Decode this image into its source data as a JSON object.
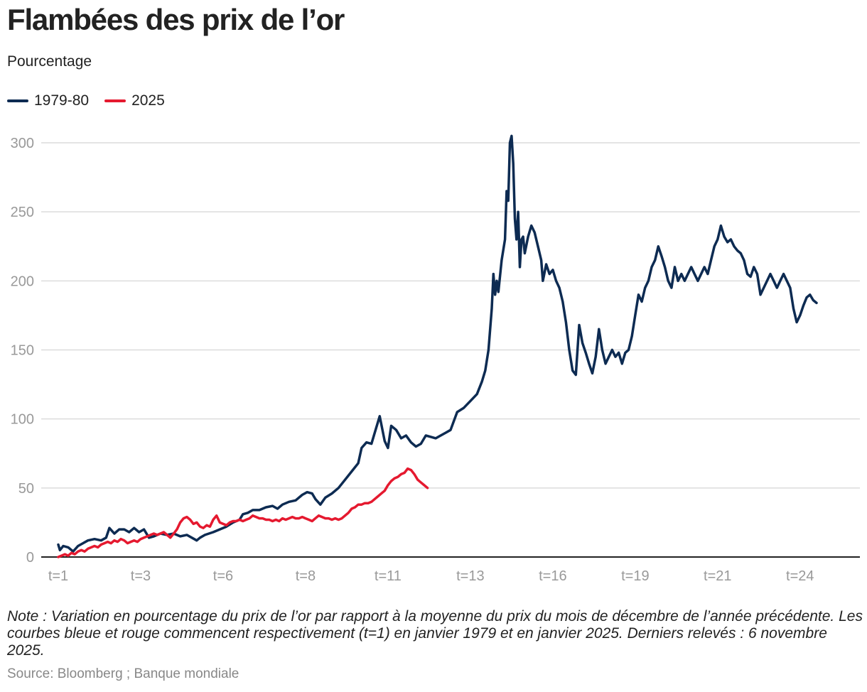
{
  "header": {
    "title": "Flambées des prix de l’or",
    "subtitle": "Pourcentage"
  },
  "colors": {
    "navy": "#0d2b52",
    "red": "#e5192f",
    "grid": "#dcdcdc",
    "tick": "#999999"
  },
  "chart_data": {
    "type": "line",
    "title": "Flambées des prix de l’or",
    "ylabel": "Pourcentage",
    "xlabel": "",
    "ylim": [
      0,
      300
    ],
    "yticks": [
      0,
      50,
      100,
      150,
      200,
      250,
      300
    ],
    "xlim": [
      1,
      25.1
    ],
    "xticks": [
      {
        "label": "t=1",
        "x": 1
      },
      {
        "label": "t=3",
        "x": 3.5
      },
      {
        "label": "t=6",
        "x": 6
      },
      {
        "label": "t=8",
        "x": 8.5
      },
      {
        "label": "t=11",
        "x": 11
      },
      {
        "label": "t=13",
        "x": 13.5
      },
      {
        "label": "t=16",
        "x": 16
      },
      {
        "label": "t=19",
        "x": 18.5
      },
      {
        "label": "t=21",
        "x": 21
      },
      {
        "label": "t=24",
        "x": 23.5
      }
    ],
    "legend_position": "top-left",
    "series": [
      {
        "name": "1979-80",
        "color": "#0d2b52",
        "points": [
          [
            1.0,
            9
          ],
          [
            1.05,
            5
          ],
          [
            1.15,
            8
          ],
          [
            1.3,
            7
          ],
          [
            1.45,
            4
          ],
          [
            1.6,
            8
          ],
          [
            1.75,
            10
          ],
          [
            1.9,
            12
          ],
          [
            2.1,
            13
          ],
          [
            2.3,
            12
          ],
          [
            2.45,
            14
          ],
          [
            2.55,
            21
          ],
          [
            2.7,
            17
          ],
          [
            2.85,
            20
          ],
          [
            3.0,
            20
          ],
          [
            3.15,
            18
          ],
          [
            3.3,
            21
          ],
          [
            3.45,
            18
          ],
          [
            3.6,
            20
          ],
          [
            3.75,
            14
          ],
          [
            3.9,
            15
          ],
          [
            4.1,
            17
          ],
          [
            4.3,
            16
          ],
          [
            4.5,
            17
          ],
          [
            4.7,
            15
          ],
          [
            4.9,
            16
          ],
          [
            5.05,
            14
          ],
          [
            5.2,
            12
          ],
          [
            5.3,
            14
          ],
          [
            5.45,
            16
          ],
          [
            5.7,
            18
          ],
          [
            5.9,
            20
          ],
          [
            6.1,
            22
          ],
          [
            6.3,
            25
          ],
          [
            6.5,
            27
          ],
          [
            6.6,
            31
          ],
          [
            6.75,
            32
          ],
          [
            6.9,
            34
          ],
          [
            7.1,
            34
          ],
          [
            7.3,
            36
          ],
          [
            7.5,
            37
          ],
          [
            7.65,
            35
          ],
          [
            7.8,
            38
          ],
          [
            8.0,
            40
          ],
          [
            8.2,
            41
          ],
          [
            8.4,
            45
          ],
          [
            8.55,
            47
          ],
          [
            8.7,
            46
          ],
          [
            8.8,
            42
          ],
          [
            8.95,
            38
          ],
          [
            9.1,
            43
          ],
          [
            9.3,
            46
          ],
          [
            9.5,
            50
          ],
          [
            9.7,
            56
          ],
          [
            9.9,
            62
          ],
          [
            10.1,
            68
          ],
          [
            10.2,
            79
          ],
          [
            10.35,
            83
          ],
          [
            10.5,
            82
          ],
          [
            10.6,
            90
          ],
          [
            10.75,
            102
          ],
          [
            10.9,
            84
          ],
          [
            11.0,
            79
          ],
          [
            11.1,
            95
          ],
          [
            11.25,
            92
          ],
          [
            11.4,
            86
          ],
          [
            11.55,
            88
          ],
          [
            11.7,
            83
          ],
          [
            11.85,
            80
          ],
          [
            12.0,
            82
          ],
          [
            12.15,
            88
          ],
          [
            12.3,
            87
          ],
          [
            12.45,
            86
          ],
          [
            12.6,
            88
          ],
          [
            12.75,
            90
          ],
          [
            12.9,
            92
          ],
          [
            13.1,
            105
          ],
          [
            13.3,
            108
          ],
          [
            13.5,
            113
          ],
          [
            13.7,
            118
          ],
          [
            13.85,
            127
          ],
          [
            13.95,
            135
          ],
          [
            14.05,
            150
          ],
          [
            14.15,
            180
          ],
          [
            14.2,
            205
          ],
          [
            14.25,
            190
          ],
          [
            14.3,
            200
          ],
          [
            14.35,
            192
          ],
          [
            14.45,
            215
          ],
          [
            14.55,
            230
          ],
          [
            14.6,
            265
          ],
          [
            14.65,
            258
          ],
          [
            14.7,
            300
          ],
          [
            14.75,
            305
          ],
          [
            14.8,
            285
          ],
          [
            14.85,
            245
          ],
          [
            14.9,
            230
          ],
          [
            14.95,
            250
          ],
          [
            15.0,
            210
          ],
          [
            15.05,
            230
          ],
          [
            15.1,
            232
          ],
          [
            15.15,
            220
          ],
          [
            15.25,
            232
          ],
          [
            15.35,
            240
          ],
          [
            15.45,
            235
          ],
          [
            15.55,
            225
          ],
          [
            15.65,
            215
          ],
          [
            15.7,
            200
          ],
          [
            15.8,
            212
          ],
          [
            15.9,
            205
          ],
          [
            16.0,
            208
          ],
          [
            16.1,
            200
          ],
          [
            16.2,
            195
          ],
          [
            16.3,
            185
          ],
          [
            16.4,
            170
          ],
          [
            16.5,
            150
          ],
          [
            16.6,
            135
          ],
          [
            16.7,
            132
          ],
          [
            16.8,
            168
          ],
          [
            16.9,
            155
          ],
          [
            17.0,
            148
          ],
          [
            17.1,
            140
          ],
          [
            17.2,
            133
          ],
          [
            17.3,
            145
          ],
          [
            17.4,
            165
          ],
          [
            17.5,
            150
          ],
          [
            17.6,
            140
          ],
          [
            17.7,
            145
          ],
          [
            17.8,
            150
          ],
          [
            17.9,
            145
          ],
          [
            18.0,
            148
          ],
          [
            18.1,
            140
          ],
          [
            18.2,
            148
          ],
          [
            18.3,
            150
          ],
          [
            18.4,
            160
          ],
          [
            18.5,
            175
          ],
          [
            18.6,
            190
          ],
          [
            18.7,
            185
          ],
          [
            18.8,
            195
          ],
          [
            18.9,
            200
          ],
          [
            19.0,
            210
          ],
          [
            19.1,
            215
          ],
          [
            19.2,
            225
          ],
          [
            19.3,
            218
          ],
          [
            19.4,
            210
          ],
          [
            19.5,
            200
          ],
          [
            19.6,
            195
          ],
          [
            19.7,
            210
          ],
          [
            19.8,
            200
          ],
          [
            19.9,
            205
          ],
          [
            20.0,
            200
          ],
          [
            20.1,
            205
          ],
          [
            20.2,
            210
          ],
          [
            20.3,
            205
          ],
          [
            20.4,
            200
          ],
          [
            20.5,
            205
          ],
          [
            20.6,
            210
          ],
          [
            20.7,
            205
          ],
          [
            20.8,
            215
          ],
          [
            20.9,
            225
          ],
          [
            21.0,
            230
          ],
          [
            21.1,
            240
          ],
          [
            21.2,
            232
          ],
          [
            21.3,
            228
          ],
          [
            21.4,
            230
          ],
          [
            21.5,
            225
          ],
          [
            21.6,
            222
          ],
          [
            21.7,
            220
          ],
          [
            21.8,
            215
          ],
          [
            21.9,
            205
          ],
          [
            22.0,
            203
          ],
          [
            22.1,
            210
          ],
          [
            22.2,
            205
          ],
          [
            22.3,
            190
          ],
          [
            22.4,
            195
          ],
          [
            22.5,
            200
          ],
          [
            22.6,
            205
          ],
          [
            22.7,
            200
          ],
          [
            22.8,
            195
          ],
          [
            22.9,
            200
          ],
          [
            23.0,
            205
          ],
          [
            23.1,
            200
          ],
          [
            23.2,
            195
          ],
          [
            23.3,
            180
          ],
          [
            23.4,
            170
          ],
          [
            23.5,
            175
          ],
          [
            23.6,
            182
          ],
          [
            23.7,
            188
          ],
          [
            23.8,
            190
          ],
          [
            23.9,
            186
          ],
          [
            24.0,
            184
          ]
        ]
      },
      {
        "name": "2025",
        "color": "#e5192f",
        "points": [
          [
            1.0,
            0
          ],
          [
            1.1,
            1
          ],
          [
            1.2,
            2
          ],
          [
            1.3,
            1
          ],
          [
            1.4,
            3
          ],
          [
            1.5,
            2
          ],
          [
            1.6,
            4
          ],
          [
            1.7,
            5
          ],
          [
            1.8,
            4
          ],
          [
            1.9,
            6
          ],
          [
            2.0,
            7
          ],
          [
            2.1,
            8
          ],
          [
            2.2,
            7
          ],
          [
            2.3,
            9
          ],
          [
            2.4,
            10
          ],
          [
            2.5,
            11
          ],
          [
            2.6,
            10
          ],
          [
            2.7,
            12
          ],
          [
            2.8,
            11
          ],
          [
            2.9,
            13
          ],
          [
            3.0,
            12
          ],
          [
            3.1,
            10
          ],
          [
            3.2,
            11
          ],
          [
            3.3,
            12
          ],
          [
            3.4,
            11
          ],
          [
            3.5,
            13
          ],
          [
            3.6,
            14
          ],
          [
            3.7,
            15
          ],
          [
            3.8,
            16
          ],
          [
            3.9,
            17
          ],
          [
            4.0,
            16
          ],
          [
            4.1,
            17
          ],
          [
            4.2,
            18
          ],
          [
            4.3,
            16
          ],
          [
            4.4,
            14
          ],
          [
            4.5,
            17
          ],
          [
            4.6,
            20
          ],
          [
            4.7,
            25
          ],
          [
            4.8,
            28
          ],
          [
            4.9,
            29
          ],
          [
            5.0,
            27
          ],
          [
            5.1,
            24
          ],
          [
            5.2,
            25
          ],
          [
            5.3,
            22
          ],
          [
            5.4,
            21
          ],
          [
            5.5,
            23
          ],
          [
            5.6,
            22
          ],
          [
            5.7,
            27
          ],
          [
            5.8,
            30
          ],
          [
            5.9,
            25
          ],
          [
            6.0,
            24
          ],
          [
            6.1,
            23
          ],
          [
            6.2,
            25
          ],
          [
            6.3,
            26
          ],
          [
            6.4,
            26
          ],
          [
            6.5,
            27
          ],
          [
            6.6,
            26
          ],
          [
            6.7,
            27
          ],
          [
            6.8,
            28
          ],
          [
            6.9,
            30
          ],
          [
            7.0,
            29
          ],
          [
            7.1,
            28
          ],
          [
            7.2,
            28
          ],
          [
            7.3,
            27
          ],
          [
            7.4,
            27
          ],
          [
            7.5,
            26
          ],
          [
            7.6,
            27
          ],
          [
            7.7,
            26
          ],
          [
            7.8,
            28
          ],
          [
            7.9,
            27
          ],
          [
            8.0,
            28
          ],
          [
            8.1,
            29
          ],
          [
            8.2,
            28
          ],
          [
            8.3,
            28
          ],
          [
            8.4,
            29
          ],
          [
            8.5,
            28
          ],
          [
            8.6,
            27
          ],
          [
            8.7,
            26
          ],
          [
            8.8,
            28
          ],
          [
            8.9,
            30
          ],
          [
            9.0,
            29
          ],
          [
            9.1,
            28
          ],
          [
            9.2,
            28
          ],
          [
            9.3,
            27
          ],
          [
            9.4,
            28
          ],
          [
            9.5,
            27
          ],
          [
            9.6,
            28
          ],
          [
            9.7,
            30
          ],
          [
            9.8,
            32
          ],
          [
            9.9,
            35
          ],
          [
            10.0,
            36
          ],
          [
            10.1,
            38
          ],
          [
            10.2,
            38
          ],
          [
            10.3,
            39
          ],
          [
            10.4,
            39
          ],
          [
            10.5,
            40
          ],
          [
            10.6,
            42
          ],
          [
            10.7,
            44
          ],
          [
            10.8,
            46
          ],
          [
            10.9,
            48
          ],
          [
            11.0,
            52
          ],
          [
            11.1,
            55
          ],
          [
            11.2,
            57
          ],
          [
            11.3,
            58
          ],
          [
            11.4,
            60
          ],
          [
            11.5,
            61
          ],
          [
            11.6,
            64
          ],
          [
            11.7,
            63
          ],
          [
            11.8,
            60
          ],
          [
            11.9,
            56
          ],
          [
            12.0,
            54
          ],
          [
            12.1,
            52
          ],
          [
            12.2,
            50
          ]
        ]
      }
    ]
  },
  "footer": {
    "note": "Note : Variation en pourcentage du prix de l’or par rapport à la moyenne du prix du mois de décembre de l’année précédente. Les courbes bleue et rouge commencent respectivement (t=1) en janvier 1979 et en janvier 2025. Derniers relevés : 6 novembre 2025.",
    "source": "Source: Bloomberg ; Banque mondiale"
  }
}
